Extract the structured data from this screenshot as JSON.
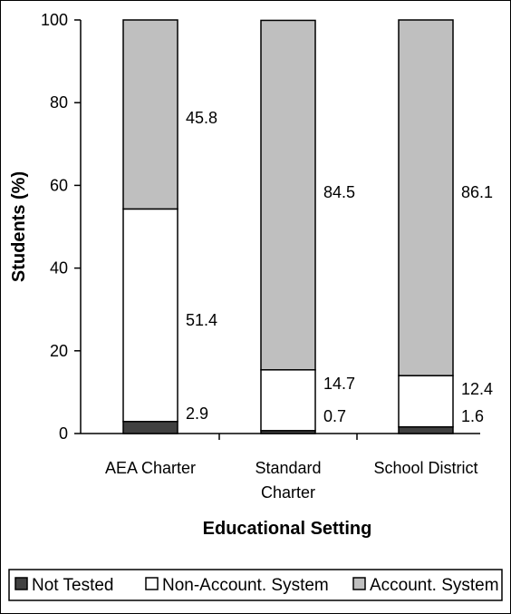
{
  "chart_data": {
    "type": "bar",
    "stacked": true,
    "title": "",
    "xlabel": "Educational Setting",
    "ylabel": "Students (%)",
    "ylim": [
      0,
      100
    ],
    "yticks": [
      0,
      20,
      40,
      60,
      80,
      100
    ],
    "categories": [
      [
        "AEA Charter"
      ],
      [
        "Standard",
        "Charter"
      ],
      [
        "School District"
      ]
    ],
    "series": [
      {
        "name": "Not Tested",
        "values": [
          2.9,
          0.7,
          1.6
        ],
        "color": "#404040"
      },
      {
        "name": "Non-Account. System",
        "values": [
          51.4,
          14.7,
          12.4
        ],
        "color": "#ffffff"
      },
      {
        "name": "Account. System",
        "values": [
          45.8,
          84.5,
          86.1
        ],
        "color": "#bfbfbf"
      }
    ],
    "data_labels": [
      [
        "2.9",
        "51.4",
        "45.8"
      ],
      [
        "0.7",
        "14.7",
        "84.5"
      ],
      [
        "1.6",
        "12.4",
        "86.1"
      ]
    ],
    "legend_position": "bottom",
    "grid": false
  }
}
